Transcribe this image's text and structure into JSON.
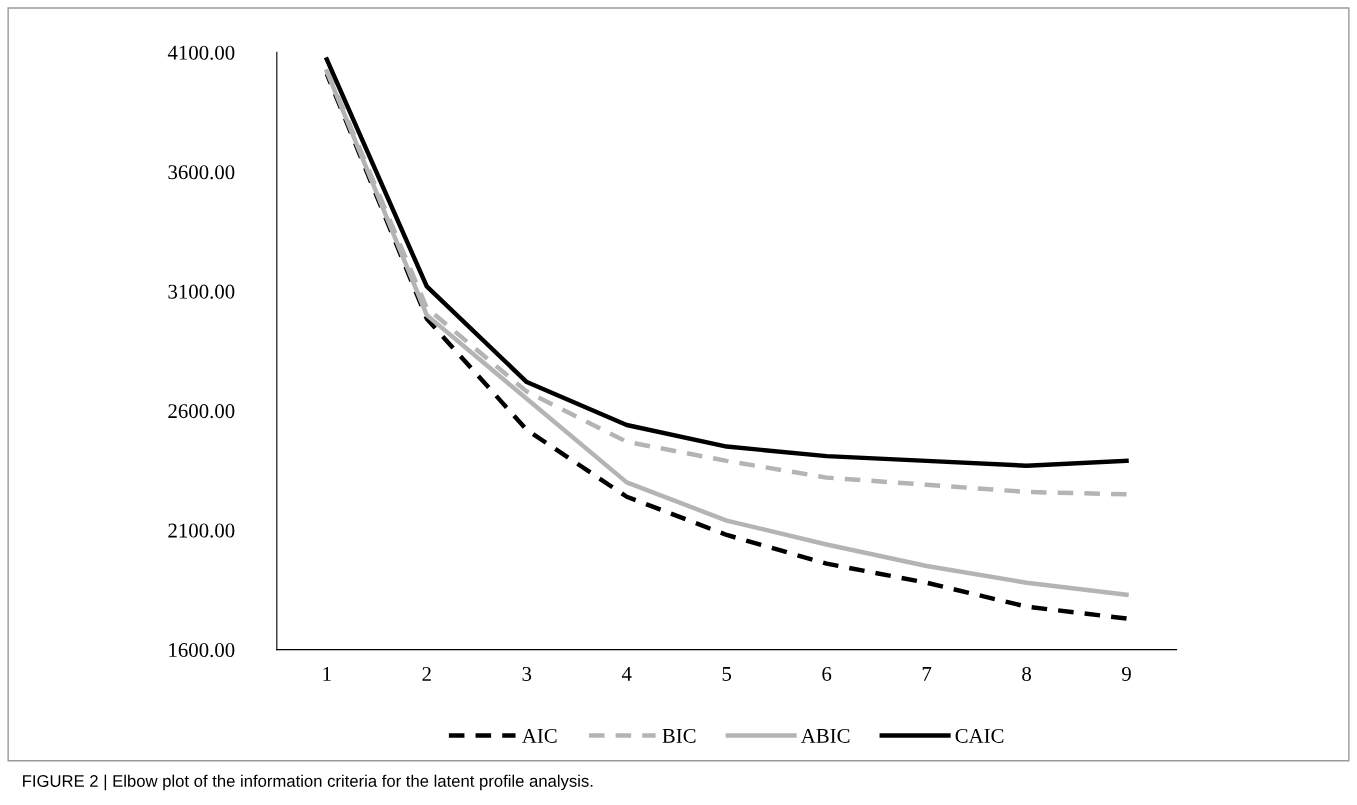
{
  "chart_data": {
    "type": "line",
    "categories": [
      "1",
      "2",
      "3",
      "4",
      "5",
      "6",
      "7",
      "8",
      "9"
    ],
    "ylim": [
      1600,
      4100
    ],
    "yticks": [
      {
        "value": 1600,
        "label": "1600.00"
      },
      {
        "value": 2100,
        "label": "2100.00"
      },
      {
        "value": 2600,
        "label": "2600.00"
      },
      {
        "value": 3100,
        "label": "3100.00"
      },
      {
        "value": 3600,
        "label": "3600.00"
      },
      {
        "value": 4100,
        "label": "4100.00"
      }
    ],
    "series": [
      {
        "name": "AIC",
        "color": "#000000",
        "line_style": "dashed",
        "values": [
          4010,
          2985,
          2520,
          2240,
          2080,
          1960,
          1880,
          1780,
          1730
        ]
      },
      {
        "name": "BIC",
        "color": "#b4b4b4",
        "line_style": "dashed",
        "values": [
          4025,
          3030,
          2680,
          2470,
          2390,
          2320,
          2290,
          2260,
          2250
        ]
      },
      {
        "name": "ABIC",
        "color": "#b4b4b4",
        "line_style": "solid",
        "values": [
          4020,
          3000,
          2650,
          2300,
          2140,
          2040,
          1950,
          1880,
          1830
        ]
      },
      {
        "name": "CAIC",
        "color": "#000000",
        "line_style": "solid",
        "values": [
          4070,
          3120,
          2720,
          2540,
          2450,
          2410,
          2390,
          2370,
          2390
        ]
      }
    ],
    "grid": false,
    "legend": "bottom",
    "marker": "none",
    "annotations": [
      "FIGURE 2 | Elbow plot of the information criteria for the latent profile analysis."
    ]
  }
}
